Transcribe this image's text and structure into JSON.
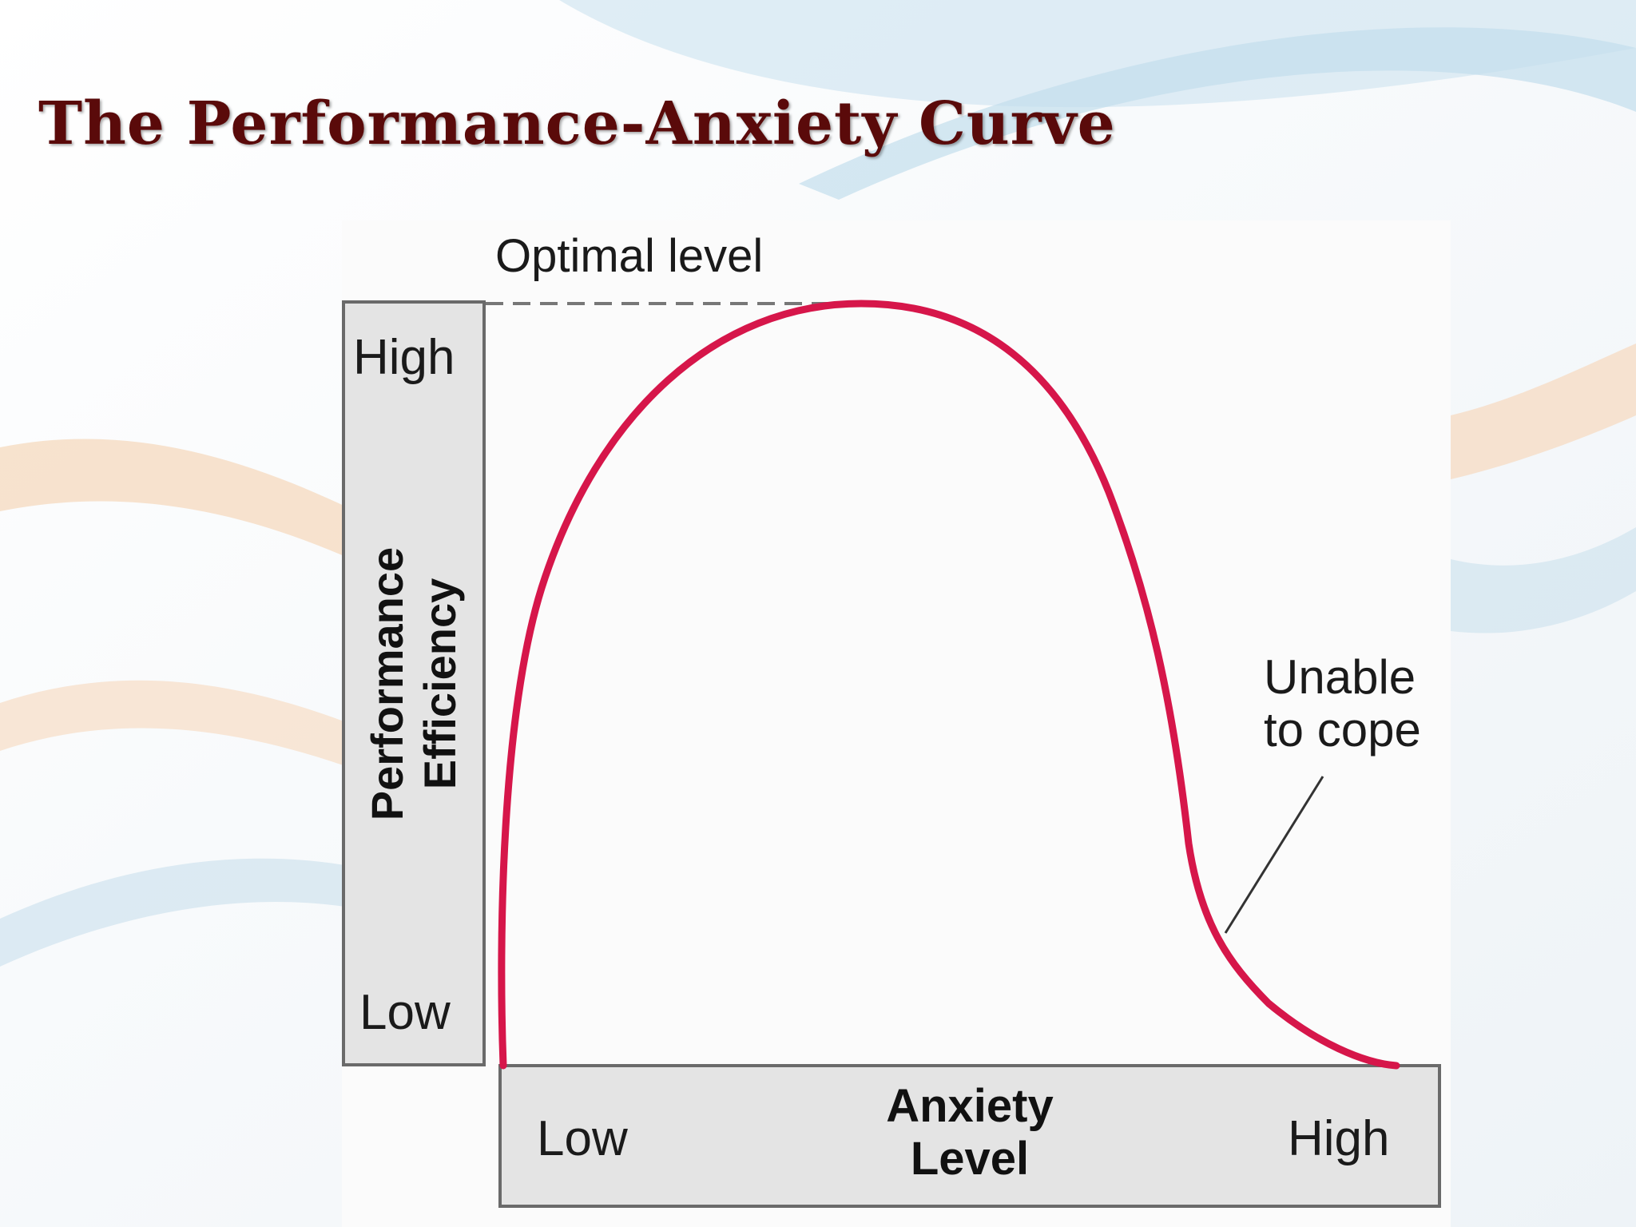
{
  "slide": {
    "title": "The Performance-Anxiety Curve"
  },
  "diagram": {
    "optimal_label": "Optimal level",
    "y_axis": {
      "title_line1": "Performance",
      "title_line2": "Efficiency",
      "high_label": "High",
      "low_label": "Low"
    },
    "x_axis": {
      "title_line1": "Anxiety",
      "title_line2": "Level",
      "low_label": "Low",
      "high_label": "High"
    },
    "annotation": {
      "line1": "Unable",
      "line2": "to cope"
    },
    "colors": {
      "curve": "#d6164a",
      "axis_box_fill": "#e4e4e4",
      "axis_box_stroke": "#6a6a6a",
      "title": "#5a0a0a"
    }
  }
}
